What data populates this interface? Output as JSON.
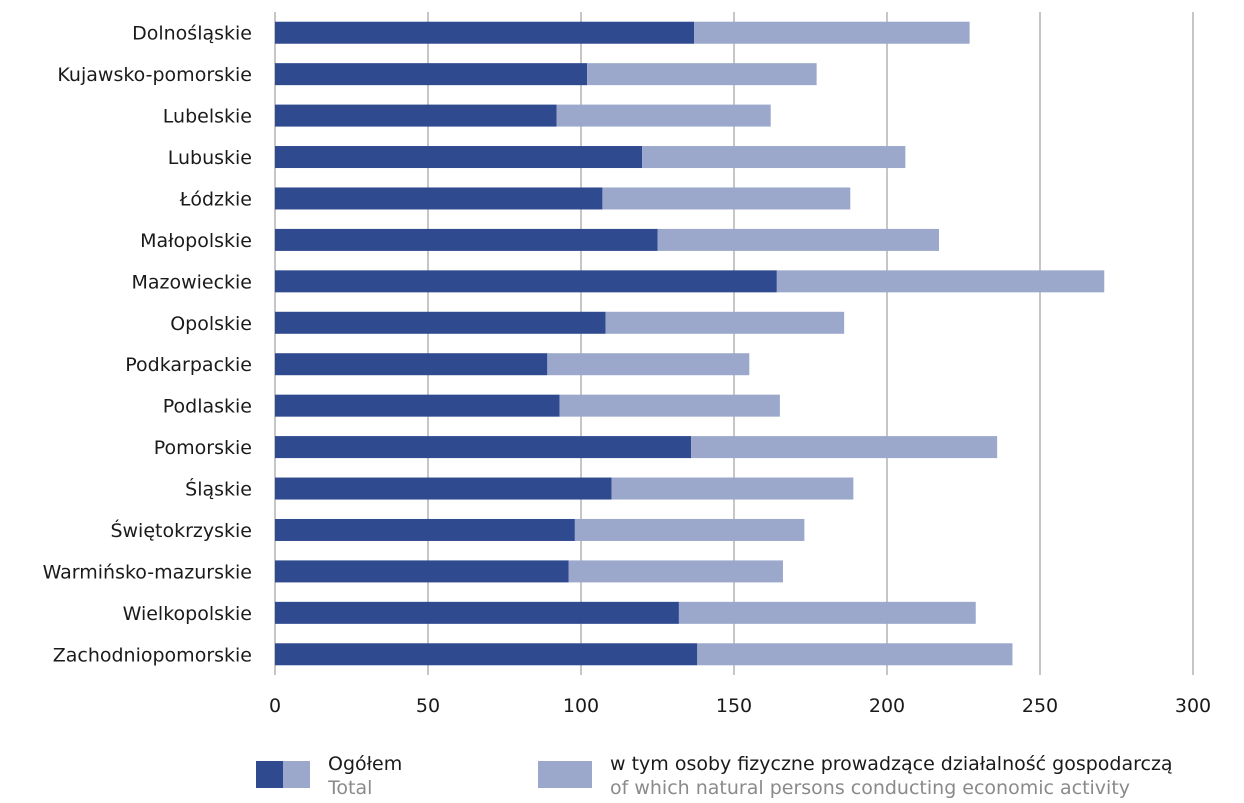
{
  "chart_data": {
    "type": "bar",
    "orientation": "horizontal",
    "stacked": true,
    "categories": [
      "Dolnośląskie",
      "Kujawsko-pomorskie",
      "Lubelskie",
      "Lubuskie",
      "Łódzkie",
      "Małopolskie",
      "Mazowieckie",
      "Opolskie",
      "Podkarpackie",
      "Podlaskie",
      "Pomorskie",
      "Śląskie",
      "Świętokrzyskie",
      "Warmińsko-mazurskie",
      "Wielkopolskie",
      "Zachodniopomorskie"
    ],
    "series": [
      {
        "color": "#2f4a8f",
        "values": [
          137,
          102,
          92,
          120,
          107,
          125,
          164,
          108,
          89,
          93,
          136,
          110,
          98,
          96,
          132,
          138
        ]
      },
      {
        "color": "#9ba8cc",
        "values": [
          90,
          75,
          70,
          86,
          81,
          92,
          107,
          78,
          66,
          72,
          100,
          79,
          75,
          70,
          97,
          103
        ]
      }
    ],
    "xlim": [
      0,
      300
    ],
    "xticks": [
      0,
      50,
      100,
      150,
      200,
      250,
      300
    ],
    "grid": true,
    "legend_position": "bottom"
  },
  "legend": {
    "total_pl": "Ogółem",
    "total_en": "Total",
    "natural_pl": "w tym osoby fizyczne prowadzące działalność gospodarczą",
    "natural_en": "of which natural persons conducting economic activity"
  },
  "colors": {
    "total": "#2f4a8f",
    "natural": "#9ba8cc",
    "grid": "#8c8c8c"
  }
}
